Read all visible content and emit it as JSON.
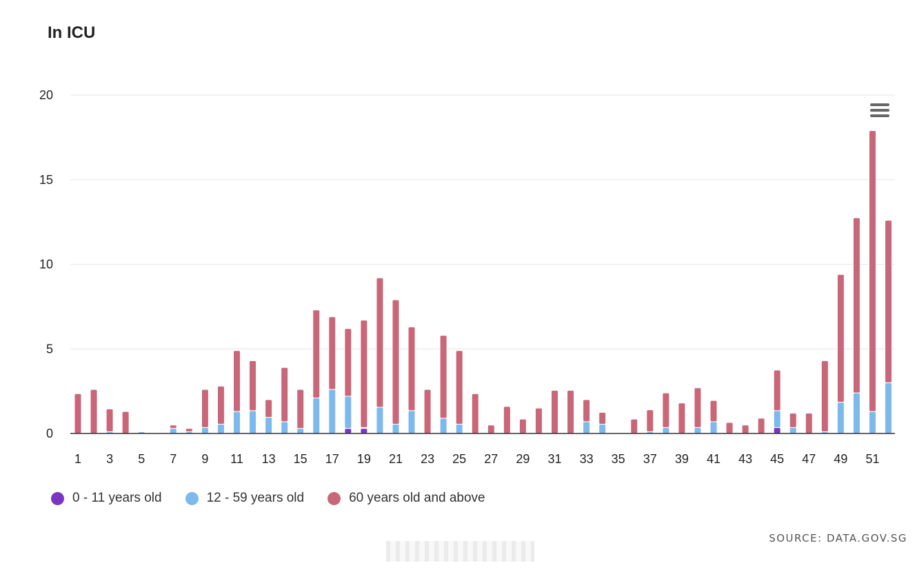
{
  "header": {
    "title": "In ICU"
  },
  "source": "SOURCE: DATA.GOV.SG",
  "menu": {
    "icon": "hamburger-menu-icon"
  },
  "colors": {
    "age_0_11": "#7b35c1",
    "age_12_59": "#7cb9ec",
    "age_60_plus": "#c96678",
    "grid": "#e6e6e6",
    "axis": "#333333"
  },
  "chart_data": {
    "type": "bar",
    "stacked": true,
    "title": "In ICU",
    "xlabel": "",
    "ylabel": "",
    "ylim": [
      0,
      20
    ],
    "yticks": [
      0,
      5,
      10,
      15,
      20
    ],
    "grid": true,
    "legend": "bottom-left",
    "categories": [
      1,
      2,
      3,
      4,
      5,
      6,
      7,
      8,
      9,
      10,
      11,
      12,
      13,
      14,
      15,
      16,
      17,
      18,
      19,
      20,
      21,
      22,
      23,
      24,
      25,
      26,
      27,
      28,
      29,
      30,
      31,
      32,
      33,
      34,
      35,
      36,
      37,
      38,
      39,
      40,
      41,
      42,
      43,
      44,
      45,
      46,
      47,
      48,
      49,
      50,
      51,
      52
    ],
    "xtick_labels": [
      "1",
      "3",
      "5",
      "7",
      "9",
      "11",
      "13",
      "15",
      "17",
      "19",
      "21",
      "23",
      "25",
      "27",
      "29",
      "31",
      "33",
      "35",
      "37",
      "39",
      "41",
      "43",
      "45",
      "47",
      "49",
      "51"
    ],
    "series": [
      {
        "name": "0 - 11 years old",
        "color": "#7b35c1",
        "values": [
          0,
          0,
          0,
          0,
          0,
          0,
          0,
          0,
          0,
          0,
          0,
          0,
          0,
          0,
          0,
          0,
          0,
          0.3,
          0.3,
          0,
          0,
          0,
          0,
          0,
          0,
          0,
          0,
          0,
          0,
          0,
          0,
          0,
          0,
          0,
          0,
          0,
          0,
          0,
          0,
          0,
          0,
          0,
          0,
          0,
          0.35,
          0,
          0,
          0,
          0,
          0,
          0,
          0
        ]
      },
      {
        "name": "12 - 59 years old",
        "color": "#7cb9ec",
        "values": [
          0,
          0,
          0.1,
          0,
          0.1,
          0,
          0.3,
          0.1,
          0.35,
          0.55,
          1.3,
          1.35,
          0.95,
          0.7,
          0.3,
          2.1,
          2.6,
          1.9,
          0.05,
          1.55,
          0.55,
          1.35,
          0,
          0.9,
          0.55,
          0,
          0,
          0,
          0,
          0,
          0,
          0,
          0.7,
          0.55,
          0,
          0,
          0.1,
          0.35,
          0,
          0.35,
          0.7,
          0,
          0,
          0,
          1.0,
          0.35,
          0,
          0.1,
          1.85,
          2.4,
          1.3,
          3.0
        ]
      },
      {
        "name": "60 years old and above",
        "color": "#c96678",
        "values": [
          2.35,
          2.6,
          1.35,
          1.3,
          0,
          0,
          0.2,
          0.2,
          2.25,
          2.25,
          3.6,
          2.95,
          1.05,
          3.2,
          2.3,
          5.2,
          4.3,
          4.0,
          6.35,
          7.65,
          7.35,
          4.95,
          2.6,
          4.9,
          4.35,
          2.35,
          0.5,
          1.6,
          0.85,
          1.5,
          2.55,
          2.55,
          1.3,
          0.7,
          0,
          0.85,
          1.3,
          2.05,
          1.8,
          2.35,
          1.25,
          0.65,
          0.5,
          0.9,
          2.4,
          0.85,
          1.2,
          4.2,
          7.55,
          10.35,
          16.6,
          9.6
        ]
      }
    ]
  }
}
